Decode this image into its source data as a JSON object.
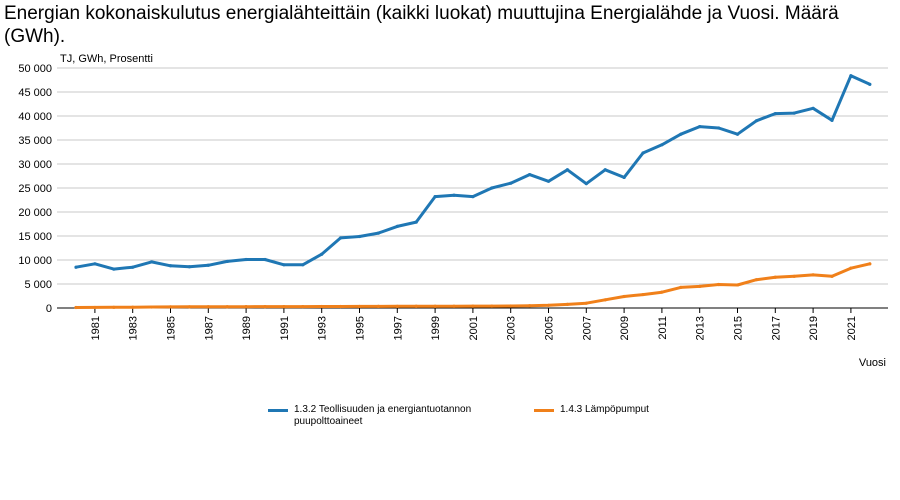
{
  "chart_data": {
    "type": "line",
    "title": "Energian kokonaiskulutus energialähteittäin (kaikki luokat) muuttujina Energialähde ja Vuosi. Määrä (GWh).",
    "unit_label": "TJ, GWh, Prosentti",
    "xlabel": "Vuosi",
    "ylabel": "",
    "ylim": [
      0,
      50000
    ],
    "yticks": [
      0,
      5000,
      10000,
      15000,
      20000,
      25000,
      30000,
      35000,
      40000,
      45000,
      50000
    ],
    "ytick_labels": [
      "0",
      "5 000",
      "10 000",
      "15 000",
      "20 000",
      "25 000",
      "30 000",
      "35 000",
      "40 000",
      "45 000",
      "50 000"
    ],
    "x": [
      1980,
      1981,
      1982,
      1983,
      1984,
      1985,
      1986,
      1987,
      1988,
      1989,
      1990,
      1991,
      1992,
      1993,
      1994,
      1995,
      1996,
      1997,
      1998,
      1999,
      2000,
      2001,
      2002,
      2003,
      2004,
      2005,
      2006,
      2007,
      2008,
      2009,
      2010,
      2011,
      2012,
      2013,
      2014,
      2015,
      2016,
      2017,
      2018,
      2019,
      2020,
      2021,
      2022
    ],
    "xtick_labels": [
      "1981",
      "1983",
      "1985",
      "1987",
      "1989",
      "1991",
      "1993",
      "1995",
      "1997",
      "1999",
      "2001",
      "2003",
      "2005",
      "2007",
      "2009",
      "2011",
      "2013",
      "2015",
      "2017",
      "2019",
      "2021"
    ],
    "grid": true,
    "legend_position": "bottom",
    "series": [
      {
        "name": "1.3.2 Teollisuuden ja energiantuotannon puupolttoaineet",
        "color": "#1f77b4",
        "values": [
          8500,
          9200,
          8100,
          8500,
          9600,
          8800,
          8600,
          8900,
          9700,
          10100,
          10100,
          9000,
          9000,
          11200,
          14600,
          14900,
          15600,
          17000,
          17900,
          23200,
          23500,
          23200,
          25000,
          26000,
          27800,
          26400,
          28800,
          25900,
          28800,
          27200,
          32300,
          34000,
          36200,
          37800,
          37500,
          36200,
          39000,
          40500,
          40600,
          41600,
          39100,
          48400,
          46600
        ]
      },
      {
        "name": "1.4.3 Lämpöpumput",
        "color": "#f0801a",
        "values": [
          100,
          120,
          140,
          160,
          200,
          230,
          250,
          260,
          270,
          280,
          290,
          290,
          300,
          310,
          320,
          330,
          340,
          350,
          360,
          370,
          380,
          390,
          400,
          420,
          480,
          560,
          750,
          1000,
          1700,
          2400,
          2800,
          3300,
          4300,
          4500,
          4900,
          4800,
          5900,
          6400,
          6600,
          6900,
          6600,
          8300,
          9200
        ]
      }
    ]
  }
}
